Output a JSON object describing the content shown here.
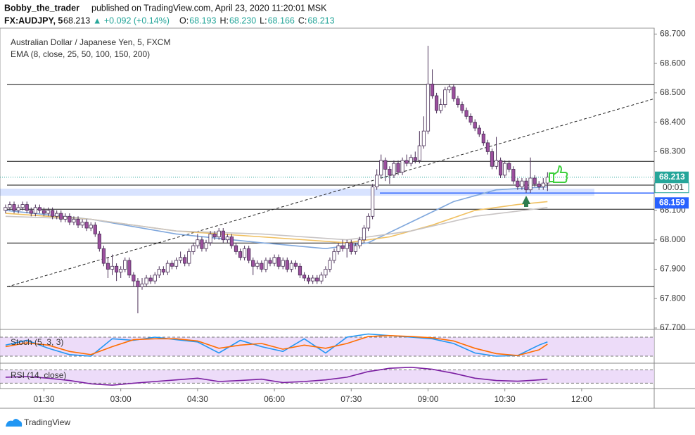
{
  "header": {
    "author": "Bobby_the_trader",
    "published": "published on TradingView.com, April 23, 2020 11:20:01 MSK",
    "symbol": "FX:AUDJPY, 5",
    "last": "68.213",
    "change": "▲ +0.092 (+0.14%)",
    "ohlc": [
      {
        "label": "O:",
        "value": "68.193"
      },
      {
        "label": "H:",
        "value": "68.230"
      },
      {
        "label": "L:",
        "value": "68.166"
      },
      {
        "label": "C:",
        "value": "68.213"
      }
    ]
  },
  "footer": {
    "brand": "TradingView"
  },
  "chart_data": [
    {
      "type": "candlestick",
      "title": "Australian Dollar / Japanese Yen, 5, FXCM",
      "subtitle": "EMA (8, close, 25, 50, 100, 150, 200)",
      "up_color": "#ffffff",
      "down_color": "#9c4f9e",
      "border_color": "#4a2f57",
      "xlim": [
        -1.3,
        152
      ],
      "ylim": [
        67.7,
        68.72
      ],
      "xticks": [
        {
          "value": 9,
          "label": "01:30"
        },
        {
          "value": 27,
          "label": "03:00"
        },
        {
          "value": 45,
          "label": "04:30"
        },
        {
          "value": 63,
          "label": "06:00"
        },
        {
          "value": 81,
          "label": "07:30"
        },
        {
          "value": 99,
          "label": "09:00"
        },
        {
          "value": 117,
          "label": "10:30"
        },
        {
          "value": 135,
          "label": "12:00"
        }
      ],
      "yticks": [
        {
          "value": 68.7,
          "label": "68.700"
        },
        {
          "value": 68.6,
          "label": "68.600"
        },
        {
          "value": 68.5,
          "label": "68.500"
        },
        {
          "value": 68.4,
          "label": "68.400"
        },
        {
          "value": 68.3,
          "label": "68.300"
        },
        {
          "value": 68.2,
          "label": "68.200"
        },
        {
          "value": 68.1,
          "label": "68.100"
        },
        {
          "value": 68.0,
          "label": "68.000"
        },
        {
          "value": 67.9,
          "label": "67.900"
        },
        {
          "value": 67.8,
          "label": "67.800"
        },
        {
          "value": 67.7,
          "label": "67.700"
        }
      ],
      "ohlc": [
        [
          68.1,
          68.12,
          68.09,
          68.11
        ],
        [
          68.11,
          68.13,
          68.1,
          68.12
        ],
        [
          68.12,
          68.13,
          68.09,
          68.1
        ],
        [
          68.1,
          68.12,
          68.09,
          68.11
        ],
        [
          68.11,
          68.13,
          68.1,
          68.12
        ],
        [
          68.12,
          68.13,
          68.09,
          68.1
        ],
        [
          68.1,
          68.11,
          68.08,
          68.09
        ],
        [
          68.09,
          68.12,
          68.08,
          68.11
        ],
        [
          68.11,
          68.12,
          68.09,
          68.1
        ],
        [
          68.1,
          68.11,
          68.08,
          68.09
        ],
        [
          68.09,
          68.11,
          68.08,
          68.1
        ],
        [
          68.1,
          68.11,
          68.07,
          68.08
        ],
        [
          68.08,
          68.1,
          68.07,
          68.09
        ],
        [
          68.09,
          68.1,
          68.06,
          68.07
        ],
        [
          68.07,
          68.09,
          68.06,
          68.08
        ],
        [
          68.08,
          68.09,
          68.05,
          68.06
        ],
        [
          68.06,
          68.08,
          68.05,
          68.07
        ],
        [
          68.07,
          68.08,
          68.04,
          68.05
        ],
        [
          68.05,
          68.07,
          68.04,
          68.06
        ],
        [
          68.06,
          68.07,
          68.03,
          68.04
        ],
        [
          68.04,
          68.06,
          68.03,
          68.05
        ],
        [
          68.05,
          68.06,
          68.01,
          68.02
        ],
        [
          68.02,
          68.03,
          67.96,
          67.97
        ],
        [
          67.97,
          67.98,
          67.91,
          67.92
        ],
        [
          67.92,
          67.94,
          67.87,
          67.9
        ],
        [
          67.9,
          67.95,
          67.88,
          67.91
        ],
        [
          67.91,
          67.92,
          67.86,
          67.89
        ],
        [
          67.89,
          67.91,
          67.87,
          67.9
        ],
        [
          67.9,
          67.94,
          67.89,
          67.93
        ],
        [
          67.93,
          67.94,
          67.87,
          67.88
        ],
        [
          67.88,
          67.89,
          67.84,
          67.86
        ],
        [
          67.86,
          67.87,
          67.75,
          67.84
        ],
        [
          67.84,
          67.87,
          67.83,
          67.85
        ],
        [
          67.85,
          67.88,
          67.84,
          67.87
        ],
        [
          67.87,
          67.88,
          67.85,
          67.86
        ],
        [
          67.86,
          67.89,
          67.85,
          67.88
        ],
        [
          67.88,
          67.91,
          67.87,
          67.9
        ],
        [
          67.9,
          67.91,
          67.88,
          67.89
        ],
        [
          67.89,
          67.93,
          67.88,
          67.92
        ],
        [
          67.92,
          67.93,
          67.9,
          67.91
        ],
        [
          67.91,
          67.94,
          67.9,
          67.93
        ],
        [
          67.93,
          67.96,
          67.92,
          67.94
        ],
        [
          67.94,
          67.95,
          67.91,
          67.92
        ],
        [
          67.92,
          67.97,
          67.91,
          67.96
        ],
        [
          67.96,
          67.99,
          67.95,
          67.98
        ],
        [
          67.98,
          68.02,
          67.97,
          68.0
        ],
        [
          68.0,
          68.01,
          67.96,
          67.97
        ],
        [
          67.97,
          68.0,
          67.96,
          67.99
        ],
        [
          67.99,
          68.03,
          67.98,
          68.02
        ],
        [
          68.02,
          68.03,
          68.0,
          68.01
        ],
        [
          68.01,
          68.04,
          68.0,
          68.03
        ],
        [
          68.03,
          68.04,
          67.99,
          68.0
        ],
        [
          68.0,
          68.02,
          67.99,
          68.01
        ],
        [
          68.01,
          68.02,
          67.97,
          67.98
        ],
        [
          67.98,
          67.99,
          67.95,
          67.96
        ],
        [
          67.96,
          67.97,
          67.93,
          67.94
        ],
        [
          67.94,
          67.98,
          67.93,
          67.97
        ],
        [
          67.97,
          67.98,
          67.92,
          67.93
        ],
        [
          67.93,
          67.94,
          67.88,
          67.91
        ],
        [
          67.91,
          67.93,
          67.9,
          67.92
        ],
        [
          67.92,
          67.93,
          67.89,
          67.9
        ],
        [
          67.9,
          67.94,
          67.89,
          67.93
        ],
        [
          67.93,
          67.94,
          67.91,
          67.92
        ],
        [
          67.92,
          67.95,
          67.91,
          67.94
        ],
        [
          67.94,
          67.95,
          67.9,
          67.91
        ],
        [
          67.91,
          67.94,
          67.9,
          67.93
        ],
        [
          67.93,
          67.94,
          67.89,
          67.9
        ],
        [
          67.9,
          67.93,
          67.89,
          67.92
        ],
        [
          67.92,
          67.93,
          67.9,
          67.91
        ],
        [
          67.91,
          67.92,
          67.87,
          67.88
        ],
        [
          67.88,
          67.89,
          67.86,
          67.87
        ],
        [
          67.87,
          67.88,
          67.85,
          67.86
        ],
        [
          67.86,
          67.88,
          67.85,
          67.87
        ],
        [
          67.87,
          67.88,
          67.85,
          67.86
        ],
        [
          67.86,
          67.89,
          67.85,
          67.88
        ],
        [
          67.88,
          67.91,
          67.87,
          67.9
        ],
        [
          67.9,
          67.94,
          67.89,
          67.93
        ],
        [
          67.93,
          67.97,
          67.92,
          67.96
        ],
        [
          67.96,
          67.99,
          67.95,
          67.98
        ],
        [
          67.98,
          68.0,
          67.96,
          67.97
        ],
        [
          67.97,
          68.0,
          67.94,
          67.99
        ],
        [
          67.99,
          68.0,
          67.95,
          67.96
        ],
        [
          67.96,
          67.99,
          67.95,
          67.98
        ],
        [
          67.98,
          68.01,
          67.97,
          68.0
        ],
        [
          68.0,
          68.05,
          67.99,
          68.04
        ],
        [
          68.04,
          68.09,
          68.03,
          68.08
        ],
        [
          68.08,
          68.19,
          68.07,
          68.18
        ],
        [
          68.18,
          68.24,
          68.17,
          68.22
        ],
        [
          68.22,
          68.29,
          68.21,
          68.27
        ],
        [
          68.27,
          68.28,
          68.2,
          68.24
        ],
        [
          68.24,
          68.25,
          68.19,
          68.22
        ],
        [
          68.22,
          68.27,
          68.21,
          68.26
        ],
        [
          68.26,
          68.27,
          68.22,
          68.23
        ],
        [
          68.23,
          68.28,
          68.22,
          68.27
        ],
        [
          68.27,
          68.29,
          68.25,
          68.26
        ],
        [
          68.26,
          68.29,
          68.25,
          68.28
        ],
        [
          68.28,
          68.3,
          68.26,
          68.27
        ],
        [
          68.27,
          68.37,
          68.26,
          68.32
        ],
        [
          68.32,
          68.42,
          68.31,
          68.37
        ],
        [
          68.37,
          68.66,
          68.36,
          68.53
        ],
        [
          68.53,
          68.58,
          68.48,
          68.49
        ],
        [
          68.49,
          68.5,
          68.43,
          68.44
        ],
        [
          68.44,
          68.48,
          68.43,
          68.46
        ],
        [
          68.46,
          68.52,
          68.45,
          68.51
        ],
        [
          68.51,
          68.53,
          68.5,
          68.52
        ],
        [
          68.52,
          68.53,
          68.47,
          68.48
        ],
        [
          68.48,
          68.49,
          68.45,
          68.46
        ],
        [
          68.46,
          68.47,
          68.43,
          68.44
        ],
        [
          68.44,
          68.45,
          68.41,
          68.42
        ],
        [
          68.42,
          68.43,
          68.39,
          68.4
        ],
        [
          68.4,
          68.41,
          68.37,
          68.38
        ],
        [
          68.38,
          68.39,
          68.35,
          68.36
        ],
        [
          68.36,
          68.37,
          68.32,
          68.33
        ],
        [
          68.33,
          68.34,
          68.29,
          68.3
        ],
        [
          68.3,
          68.31,
          68.24,
          68.25
        ],
        [
          68.25,
          68.35,
          68.24,
          68.27
        ],
        [
          68.27,
          68.28,
          68.21,
          68.22
        ],
        [
          68.22,
          68.27,
          68.21,
          68.26
        ],
        [
          68.26,
          68.27,
          68.23,
          68.24
        ],
        [
          68.24,
          68.25,
          68.19,
          68.2
        ],
        [
          68.2,
          68.21,
          68.17,
          68.18
        ],
        [
          68.18,
          68.21,
          68.17,
          68.2
        ],
        [
          68.2,
          68.21,
          68.16,
          68.17
        ],
        [
          68.17,
          68.28,
          68.16,
          68.21
        ],
        [
          68.21,
          68.22,
          68.18,
          68.19
        ],
        [
          68.19,
          68.2,
          68.17,
          68.18
        ],
        [
          68.18,
          68.21,
          68.17,
          68.193
        ],
        [
          68.193,
          68.23,
          68.166,
          68.213
        ]
      ],
      "series": [
        {
          "color": "#7fa7dc",
          "x": [
            0,
            20,
            40,
            60,
            75,
            85,
            95,
            105,
            115,
            127
          ],
          "values": [
            68.1,
            68.07,
            68.02,
            67.99,
            67.97,
            67.99,
            68.06,
            68.13,
            68.17,
            68.18
          ]
        },
        {
          "color": "#f0c060",
          "x": [
            0,
            20,
            40,
            60,
            80,
            90,
            100,
            110,
            120,
            127
          ],
          "values": [
            68.09,
            68.07,
            68.03,
            68.01,
            67.99,
            68.01,
            68.05,
            68.1,
            68.12,
            68.13
          ]
        },
        {
          "color": "#c8c4c4",
          "x": [
            0,
            20,
            40,
            60,
            80,
            95,
            110,
            127
          ],
          "values": [
            68.08,
            68.07,
            68.03,
            68.02,
            68.0,
            68.03,
            68.08,
            68.11
          ]
        }
      ],
      "levels": [
        68.528,
        68.267,
        68.186,
        68.104,
        67.989,
        67.841
      ],
      "support": {
        "value": 68.159,
        "band": [
          68.15,
          68.174
        ],
        "color": "#2962ff"
      },
      "trendline": [
        [
          0.35,
          67.84
        ],
        [
          152,
          68.48
        ]
      ],
      "price_labels": [
        {
          "value": 68.213,
          "color": "#26a69a"
        },
        {
          "value": 68.159,
          "color": "#2962ff"
        }
      ],
      "countdown": "00:01"
    },
    {
      "type": "line",
      "title": "Stoch (5, 3, 3)",
      "ylim": [
        0,
        100
      ],
      "levels": [
        20,
        80
      ],
      "x": [
        0,
        5,
        10,
        15,
        20,
        25,
        30,
        35,
        40,
        45,
        50,
        55,
        60,
        65,
        70,
        75,
        80,
        85,
        90,
        95,
        100,
        105,
        110,
        115,
        120,
        125,
        127
      ],
      "series": [
        {
          "color": "#2196f3",
          "values": [
            55,
            70,
            45,
            25,
            20,
            75,
            70,
            80,
            72,
            65,
            30,
            70,
            50,
            35,
            75,
            30,
            80,
            90,
            85,
            80,
            75,
            60,
            30,
            20,
            22,
            55,
            65
          ]
        },
        {
          "color": "#ff6d00",
          "values": [
            50,
            62,
            55,
            35,
            25,
            50,
            72,
            75,
            75,
            68,
            45,
            55,
            60,
            42,
            55,
            45,
            60,
            82,
            85,
            82,
            78,
            68,
            45,
            28,
            22,
            40,
            58
          ]
        }
      ]
    },
    {
      "type": "line",
      "title": "RSI (14, close)",
      "ylim": [
        16,
        86
      ],
      "levels": [
        30,
        70
      ],
      "x": [
        0,
        5,
        10,
        15,
        20,
        25,
        30,
        35,
        40,
        45,
        50,
        55,
        60,
        65,
        70,
        75,
        80,
        85,
        90,
        95,
        100,
        105,
        110,
        115,
        120,
        125,
        127
      ],
      "series": [
        {
          "color": "#7b1fa2",
          "values": [
            48,
            50,
            45,
            38,
            28,
            24,
            30,
            35,
            40,
            45,
            35,
            38,
            42,
            32,
            35,
            40,
            48,
            65,
            75,
            78,
            72,
            60,
            45,
            38,
            36,
            40,
            42
          ]
        }
      ]
    }
  ]
}
